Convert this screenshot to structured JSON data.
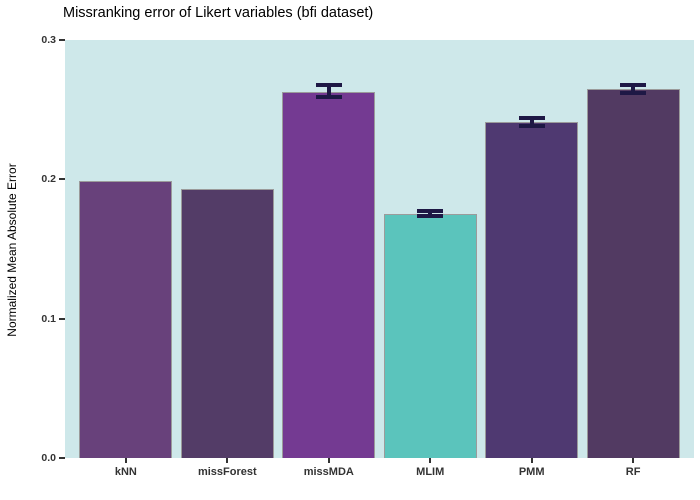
{
  "chart_data": {
    "type": "bar",
    "title": "Missranking error of Likert variables (bfi dataset)",
    "ylabel": "Normalized Mean Absolute Error",
    "xlabel": "",
    "categories": [
      "kNN",
      "missForest",
      "missMDA",
      "MLIM",
      "PMM",
      "RF"
    ],
    "values": [
      0.199,
      0.193,
      0.263,
      0.175,
      0.241,
      0.265
    ],
    "error_bars": [
      null,
      null,
      {
        "low": 0.259,
        "high": 0.268
      },
      {
        "low": 0.174,
        "high": 0.177
      },
      {
        "low": 0.238,
        "high": 0.244
      },
      {
        "low": 0.262,
        "high": 0.268
      }
    ],
    "bar_colors": [
      "#68417B",
      "#533C67",
      "#743A92",
      "#5BC4BC",
      "#4F3971",
      "#523A62"
    ],
    "bar_border_color": "#9B9B9B",
    "errorbar_color": "#1E1845",
    "panel_background": "#CEE8EA",
    "outer_background": "#FFFFFF",
    "yticks": [
      {
        "value": 0.0,
        "label": "0.0"
      },
      {
        "value": 0.1,
        "label": "0.1"
      },
      {
        "value": 0.2,
        "label": "0.2"
      },
      {
        "value": 0.3,
        "label": "0.3"
      }
    ],
    "ylim": [
      0,
      0.3
    ],
    "grid": false,
    "legend": false
  }
}
